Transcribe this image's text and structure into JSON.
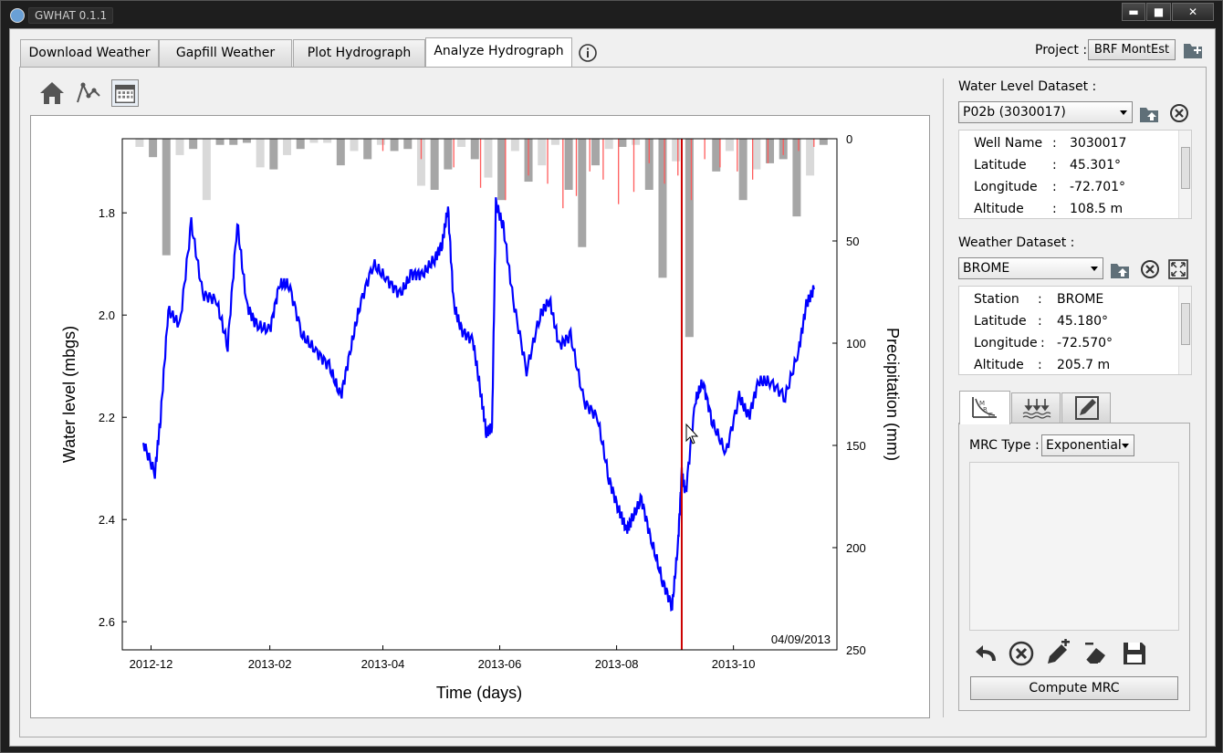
{
  "window": {
    "title": "GWHAT 0.1.1",
    "minimize": "▬",
    "maximize": "■",
    "close": "✕"
  },
  "tabs": [
    {
      "label": "Download Weather"
    },
    {
      "label": "Gapfill Weather"
    },
    {
      "label": "Plot Hydrograph"
    },
    {
      "label": "Analyze Hydrograph"
    }
  ],
  "info_icon": "info-icon",
  "project": {
    "label": "Project :",
    "value": "BRF MontEst"
  },
  "toolbar": {
    "icons": [
      "home-icon",
      "line-points-icon",
      "calendar-icon"
    ]
  },
  "water_level": {
    "label": "Water Level Dataset :",
    "selected": "P02b (3030017)",
    "rows": [
      {
        "key": "Well Name",
        "sep": ":",
        "value": "3030017"
      },
      {
        "key": "Latitude",
        "sep": ":",
        "value": "45.301°"
      },
      {
        "key": "Longitude",
        "sep": ":",
        "value": "-72.701°"
      },
      {
        "key": "Altitude",
        "sep": ":",
        "value": "108.5 m"
      }
    ]
  },
  "weather": {
    "label": "Weather Dataset :",
    "selected": "BROME",
    "rows": [
      {
        "key": "Station",
        "sep": ":",
        "value": "BROME"
      },
      {
        "key": "Latitude",
        "sep": ":",
        "value": "45.180°"
      },
      {
        "key": "Longitude",
        "sep": ":",
        "value": "-72.570°"
      },
      {
        "key": "Altitude",
        "sep": ":",
        "value": "205.7 m"
      }
    ]
  },
  "mrc": {
    "tabs": [
      "mrc-icon",
      "recharge-icon",
      "edit-chart-icon"
    ],
    "type_label": "MRC Type :",
    "type_value": "Exponential",
    "compute_label": "Compute MRC"
  },
  "colors": {
    "water_level": "#0000ff",
    "rain": "#ff5c5c",
    "precip_dark": "#a6a6a6",
    "precip_light": "#d9d9d9",
    "cursor": "#cc0000"
  },
  "chart_data": {
    "type": "line",
    "xlabel": "Time (days)",
    "ylabel": "Water level (mbgs)",
    "y2label": "Precipitation (mm)",
    "date_label": "04/09/2013",
    "x_ticks": [
      "2012-12",
      "2013-02",
      "2013-04",
      "2013-06",
      "2013-08",
      "2013-10"
    ],
    "y_ticks": [
      "1.8",
      "2.0",
      "2.2",
      "2.4",
      "2.6"
    ],
    "y2_ticks": [
      "0",
      "50",
      "100",
      "150",
      "200",
      "250"
    ],
    "ylim": [
      1.655,
      2.655
    ],
    "y2lim": [
      0,
      250
    ],
    "xlim": [
      "2012-11-16",
      "2013-11-24"
    ],
    "cursor_date": "2013-09-04",
    "series": [
      {
        "kind": "water_level",
        "x": [
          "2012-11-27",
          "2012-12-03",
          "2012-12-06",
          "2012-12-10",
          "2012-12-16",
          "2012-12-22",
          "2012-12-28",
          "2013-01-04",
          "2013-01-10",
          "2013-01-15",
          "2013-01-20",
          "2013-01-25",
          "2013-02-01",
          "2013-02-06",
          "2013-02-11",
          "2013-02-18",
          "2013-02-25",
          "2013-03-04",
          "2013-03-10",
          "2013-03-15",
          "2013-03-20",
          "2013-03-27",
          "2013-04-03",
          "2013-04-10",
          "2013-04-16",
          "2013-04-22",
          "2013-04-28",
          "2013-05-02",
          "2013-05-05",
          "2013-05-08",
          "2013-05-12",
          "2013-05-18",
          "2013-05-22",
          "2013-05-25",
          "2013-05-28",
          "2013-05-30",
          "2013-06-03",
          "2013-06-08",
          "2013-06-15",
          "2013-06-22",
          "2013-06-27",
          "2013-07-02",
          "2013-07-08",
          "2013-07-15",
          "2013-07-22",
          "2013-07-28",
          "2013-08-02",
          "2013-08-06",
          "2013-08-09",
          "2013-08-14",
          "2013-08-19",
          "2013-08-25",
          "2013-08-30",
          "2013-09-02",
          "2013-09-04",
          "2013-09-06",
          "2013-09-11",
          "2013-09-15",
          "2013-09-20",
          "2013-09-27",
          "2013-10-04",
          "2013-10-09",
          "2013-10-14",
          "2013-10-20",
          "2013-10-28",
          "2013-11-04",
          "2013-11-08",
          "2013-11-12"
        ],
        "y": [
          2.25,
          2.31,
          2.2,
          1.99,
          2.02,
          1.82,
          1.96,
          1.97,
          2.06,
          1.82,
          1.98,
          2.02,
          2.03,
          1.94,
          1.94,
          2.04,
          2.07,
          2.1,
          2.16,
          2.07,
          1.98,
          1.9,
          1.93,
          1.96,
          1.92,
          1.92,
          1.89,
          1.86,
          1.79,
          1.98,
          2.03,
          2.05,
          2.15,
          2.23,
          2.22,
          1.78,
          1.83,
          1.97,
          2.11,
          2.0,
          1.97,
          2.06,
          2.04,
          2.17,
          2.2,
          2.32,
          2.38,
          2.42,
          2.4,
          2.36,
          2.44,
          2.52,
          2.57,
          2.45,
          2.31,
          2.35,
          2.17,
          2.13,
          2.21,
          2.27,
          2.16,
          2.2,
          2.13,
          2.13,
          2.16,
          2.07,
          1.98,
          1.95
        ]
      },
      {
        "kind": "precip_daily",
        "x": [
          "2013-04-01",
          "2013-04-21",
          "2013-05-08",
          "2013-05-22",
          "2013-06-04",
          "2013-06-16",
          "2013-06-26",
          "2013-07-04",
          "2013-07-11",
          "2013-07-18",
          "2013-07-25",
          "2013-08-02",
          "2013-08-10",
          "2013-08-18",
          "2013-08-26",
          "2013-09-02",
          "2013-09-09",
          "2013-09-16",
          "2013-09-24",
          "2013-10-03",
          "2013-10-11",
          "2013-10-19",
          "2013-10-27",
          "2013-11-04",
          "2013-11-12"
        ],
        "values": [
          6,
          10,
          14,
          24,
          30,
          18,
          22,
          34,
          28,
          16,
          20,
          32,
          26,
          12,
          22,
          18,
          30,
          10,
          14,
          16,
          20,
          12,
          8,
          6,
          4
        ]
      },
      {
        "kind": "precip_weekly",
        "x": [
          "2012-11-25",
          "2012-12-02",
          "2012-12-09",
          "2012-12-16",
          "2012-12-23",
          "2012-12-30",
          "2013-01-06",
          "2013-01-13",
          "2013-01-20",
          "2013-01-27",
          "2013-02-03",
          "2013-02-10",
          "2013-02-17",
          "2013-02-24",
          "2013-03-03",
          "2013-03-10",
          "2013-03-17",
          "2013-03-24",
          "2013-03-31",
          "2013-04-07",
          "2013-04-14",
          "2013-04-21",
          "2013-04-28",
          "2013-05-05",
          "2013-05-12",
          "2013-05-19",
          "2013-05-26",
          "2013-06-02",
          "2013-06-09",
          "2013-06-16",
          "2013-06-23",
          "2013-06-30",
          "2013-07-07",
          "2013-07-14",
          "2013-07-21",
          "2013-07-28",
          "2013-08-04",
          "2013-08-11",
          "2013-08-18",
          "2013-08-25",
          "2013-09-01",
          "2013-09-08",
          "2013-09-15",
          "2013-09-22",
          "2013-09-29",
          "2013-10-06",
          "2013-10-13",
          "2013-10-20",
          "2013-10-27",
          "2013-11-03",
          "2013-11-10",
          "2013-11-17"
        ],
        "values": [
          4,
          9,
          57,
          8,
          5,
          30,
          3,
          3,
          2,
          14,
          15,
          8,
          5,
          2,
          2,
          13,
          6,
          10,
          3,
          6,
          5,
          23,
          25,
          15,
          4,
          10,
          19,
          30,
          6,
          21,
          13,
          3,
          25,
          53,
          13,
          5,
          4,
          3,
          25,
          68,
          11,
          97,
          0,
          16,
          6,
          30,
          15,
          12,
          10,
          38,
          18,
          3
        ],
        "shade": [
          "l",
          "d",
          "d",
          "l",
          "d",
          "l",
          "d",
          "d",
          "d",
          "l",
          "d",
          "l",
          "d",
          "l",
          "l",
          "d",
          "l",
          "d",
          "l",
          "d",
          "d",
          "l",
          "d",
          "d",
          "l",
          "d",
          "l",
          "d",
          "l",
          "d",
          "l",
          "l",
          "d",
          "d",
          "d",
          "l",
          "d",
          "l",
          "d",
          "d",
          "l",
          "d",
          "l",
          "d",
          "l",
          "d",
          "l",
          "d",
          "d",
          "d",
          "l",
          "d"
        ]
      }
    ]
  }
}
